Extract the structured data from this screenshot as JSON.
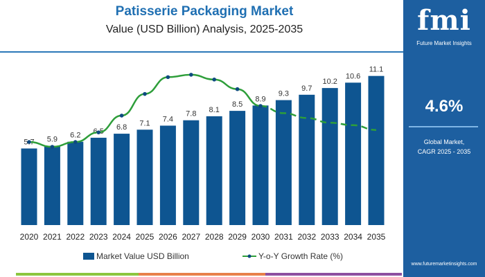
{
  "header": {
    "title": "Patisserie Packaging Market",
    "subtitle": "Value (USD Billion) Analysis, 2025-2035"
  },
  "panel": {
    "logo_text": "fmi",
    "logo_subtitle": "Future Market Insights",
    "cagr_value": "4.6%",
    "cagr_label_line1": "Global Market,",
    "cagr_label_line2": "CAGR 2025 - 2035",
    "url": "www.futuremarketinsights.com"
  },
  "colors": {
    "bar": "#0e5591",
    "line": "#2e9e3a",
    "marker": "#0e4a80",
    "panel": "#1d5fa0",
    "title": "#1f6fb2"
  },
  "chart_data": {
    "type": "bar",
    "categories": [
      "2020",
      "2021",
      "2022",
      "2023",
      "2024",
      "2025",
      "2026",
      "2027",
      "2028",
      "2029",
      "2030",
      "2031",
      "2032",
      "2033",
      "2034",
      "2035"
    ],
    "series": [
      {
        "name": "Market Value USD Billion",
        "type": "bar",
        "values": [
          5.7,
          5.9,
          6.2,
          6.5,
          6.8,
          7.1,
          7.4,
          7.8,
          8.1,
          8.5,
          8.9,
          9.3,
          9.7,
          10.2,
          10.6,
          11.1
        ],
        "labels": [
          "5.7",
          "5.9",
          "6.2",
          "6.5",
          "6.8",
          "7.1",
          "7.4",
          "7.8",
          "8.1",
          "8.5",
          "8.9",
          "9.3",
          "9.7",
          "10.2",
          "10.6",
          "11.1"
        ]
      },
      {
        "name": "Y-o-Y Growth Rate (%)",
        "type": "line",
        "values_estimated": [
          3.2,
          3.0,
          3.2,
          3.6,
          4.3,
          5.2,
          5.9,
          6.0,
          5.8,
          5.4,
          4.7,
          4.4,
          4.2,
          4.0,
          3.9,
          3.7
        ],
        "dashed_from": "2030"
      }
    ],
    "grid": false,
    "legend": "bottom"
  },
  "footer_strip": [
    "#8cc63f",
    "#e8804a",
    "#8e4fa0"
  ]
}
